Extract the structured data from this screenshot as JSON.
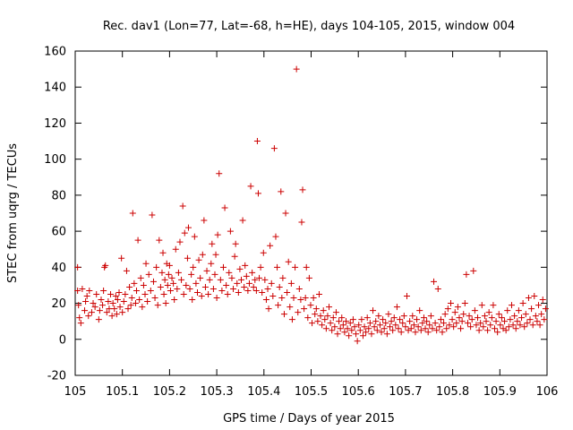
{
  "chart_data": {
    "type": "scatter",
    "title": "Rec. dav1 (Lon=77, Lat=-68, h=HE), days 104-105, 2015, window 004",
    "xlabel": "GPS time / Days of year 2015",
    "ylabel": "STEC from uqrg / TECUs",
    "xlim": [
      105,
      106
    ],
    "ylim": [
      -20,
      160
    ],
    "x_ticks": [
      105,
      105.1,
      105.2,
      105.3,
      105.4,
      105.5,
      105.6,
      105.7,
      105.8,
      105.9,
      106
    ],
    "x_tick_labels": [
      "105",
      "105.1",
      "105.2",
      "105.3",
      "105.4",
      "105.5",
      "105.6",
      "105.7",
      "105.8",
      "105.9",
      "106"
    ],
    "y_ticks": [
      -20,
      0,
      20,
      40,
      60,
      80,
      100,
      120,
      140,
      160
    ],
    "y_tick_labels": [
      "-20",
      "0",
      "20",
      "40",
      "60",
      "80",
      "100",
      "120",
      "140",
      "160"
    ],
    "grid": false,
    "marker": "+",
    "color": "#cc0000",
    "points": [
      [
        105.005,
        40
      ],
      [
        105.005,
        27
      ],
      [
        105.007,
        19
      ],
      [
        105.009,
        12
      ],
      [
        105.012,
        9
      ],
      [
        105.015,
        28
      ],
      [
        105.02,
        16
      ],
      [
        105.022,
        21
      ],
      [
        105.025,
        24
      ],
      [
        105.028,
        13
      ],
      [
        105.03,
        27
      ],
      [
        105.035,
        15
      ],
      [
        105.038,
        20
      ],
      [
        105.042,
        18
      ],
      [
        105.045,
        25
      ],
      [
        105.05,
        11
      ],
      [
        105.052,
        16
      ],
      [
        105.055,
        22
      ],
      [
        105.058,
        19
      ],
      [
        105.06,
        27
      ],
      [
        105.062,
        40
      ],
      [
        105.064,
        41
      ],
      [
        105.067,
        15
      ],
      [
        105.07,
        21
      ],
      [
        105.072,
        17
      ],
      [
        105.075,
        25
      ],
      [
        105.078,
        13
      ],
      [
        105.08,
        20
      ],
      [
        105.083,
        17
      ],
      [
        105.086,
        24
      ],
      [
        105.088,
        14
      ],
      [
        105.09,
        22
      ],
      [
        105.093,
        26
      ],
      [
        105.095,
        18
      ],
      [
        105.098,
        45
      ],
      [
        105.1,
        15
      ],
      [
        105.103,
        21
      ],
      [
        105.106,
        25
      ],
      [
        105.109,
        38
      ],
      [
        105.112,
        17
      ],
      [
        105.115,
        29
      ],
      [
        105.118,
        19
      ],
      [
        105.12,
        23
      ],
      [
        105.122,
        70
      ],
      [
        105.125,
        31
      ],
      [
        105.128,
        20
      ],
      [
        105.13,
        27
      ],
      [
        105.133,
        55
      ],
      [
        105.136,
        22
      ],
      [
        105.139,
        34
      ],
      [
        105.142,
        18
      ],
      [
        105.145,
        30
      ],
      [
        105.148,
        25
      ],
      [
        105.15,
        42
      ],
      [
        105.153,
        21
      ],
      [
        105.156,
        36
      ],
      [
        105.16,
        27
      ],
      [
        105.163,
        69
      ],
      [
        105.166,
        32
      ],
      [
        105.169,
        23
      ],
      [
        105.172,
        40
      ],
      [
        105.175,
        19
      ],
      [
        105.178,
        55
      ],
      [
        105.181,
        29
      ],
      [
        105.184,
        37
      ],
      [
        105.186,
        48
      ],
      [
        105.188,
        25
      ],
      [
        105.19,
        33
      ],
      [
        105.192,
        20
      ],
      [
        105.194,
        42
      ],
      [
        105.196,
        30
      ],
      [
        105.198,
        36
      ],
      [
        105.2,
        41
      ],
      [
        105.202,
        27
      ],
      [
        105.205,
        34
      ],
      [
        105.208,
        31
      ],
      [
        105.21,
        22
      ],
      [
        105.213,
        50
      ],
      [
        105.216,
        28
      ],
      [
        105.219,
        37
      ],
      [
        105.222,
        54
      ],
      [
        105.225,
        33
      ],
      [
        105.228,
        74
      ],
      [
        105.23,
        25
      ],
      [
        105.232,
        59
      ],
      [
        105.235,
        30
      ],
      [
        105.238,
        45
      ],
      [
        105.24,
        62
      ],
      [
        105.243,
        28
      ],
      [
        105.246,
        36
      ],
      [
        105.248,
        22
      ],
      [
        105.25,
        40
      ],
      [
        105.253,
        57
      ],
      [
        105.256,
        31
      ],
      [
        105.259,
        26
      ],
      [
        105.262,
        44
      ],
      [
        105.265,
        34
      ],
      [
        105.268,
        24
      ],
      [
        105.27,
        47
      ],
      [
        105.273,
        66
      ],
      [
        105.276,
        29
      ],
      [
        105.279,
        38
      ],
      [
        105.282,
        25
      ],
      [
        105.285,
        33
      ],
      [
        105.288,
        42
      ],
      [
        105.29,
        53
      ],
      [
        105.293,
        28
      ],
      [
        105.296,
        36
      ],
      [
        105.298,
        47
      ],
      [
        105.3,
        23
      ],
      [
        105.302,
        58
      ],
      [
        105.305,
        92
      ],
      [
        105.308,
        33
      ],
      [
        105.311,
        27
      ],
      [
        105.314,
        40
      ],
      [
        105.317,
        73
      ],
      [
        105.32,
        30
      ],
      [
        105.323,
        25
      ],
      [
        105.326,
        37
      ],
      [
        105.329,
        60
      ],
      [
        105.332,
        34
      ],
      [
        105.335,
        28
      ],
      [
        105.338,
        46
      ],
      [
        105.34,
        53
      ],
      [
        105.343,
        31
      ],
      [
        105.346,
        26
      ],
      [
        105.349,
        39
      ],
      [
        105.352,
        33
      ],
      [
        105.355,
        66
      ],
      [
        105.358,
        29
      ],
      [
        105.36,
        41
      ],
      [
        105.363,
        35
      ],
      [
        105.366,
        27
      ],
      [
        105.369,
        31
      ],
      [
        105.372,
        85
      ],
      [
        105.375,
        37
      ],
      [
        105.378,
        29
      ],
      [
        105.381,
        33
      ],
      [
        105.384,
        27
      ],
      [
        105.386,
        110
      ],
      [
        105.388,
        81
      ],
      [
        105.39,
        34
      ],
      [
        105.393,
        40
      ],
      [
        105.396,
        26
      ],
      [
        105.399,
        48
      ],
      [
        105.402,
        33
      ],
      [
        105.405,
        22
      ],
      [
        105.408,
        28
      ],
      [
        105.41,
        17
      ],
      [
        105.413,
        52
      ],
      [
        105.416,
        31
      ],
      [
        105.419,
        24
      ],
      [
        105.422,
        106
      ],
      [
        105.425,
        57
      ],
      [
        105.428,
        40
      ],
      [
        105.43,
        19
      ],
      [
        105.433,
        29
      ],
      [
        105.436,
        82
      ],
      [
        105.438,
        23
      ],
      [
        105.44,
        34
      ],
      [
        105.443,
        14
      ],
      [
        105.446,
        70
      ],
      [
        105.449,
        26
      ],
      [
        105.452,
        43
      ],
      [
        105.455,
        18
      ],
      [
        105.458,
        31
      ],
      [
        105.46,
        11
      ],
      [
        105.463,
        23
      ],
      [
        105.466,
        40
      ],
      [
        105.469,
        150
      ],
      [
        105.472,
        15
      ],
      [
        105.475,
        28
      ],
      [
        105.478,
        22
      ],
      [
        105.48,
        65
      ],
      [
        105.482,
        83
      ],
      [
        105.485,
        17
      ],
      [
        105.488,
        23
      ],
      [
        105.49,
        40
      ],
      [
        105.493,
        12
      ],
      [
        105.496,
        34
      ],
      [
        105.499,
        19
      ],
      [
        105.502,
        9
      ],
      [
        105.505,
        23
      ],
      [
        105.508,
        14
      ],
      [
        105.511,
        17
      ],
      [
        105.514,
        10
      ],
      [
        105.517,
        25
      ],
      [
        105.52,
        13
      ],
      [
        105.523,
        8
      ],
      [
        105.526,
        16
      ],
      [
        105.529,
        11
      ],
      [
        105.532,
        6
      ],
      [
        105.535,
        13
      ],
      [
        105.538,
        18
      ],
      [
        105.541,
        9
      ],
      [
        105.544,
        5
      ],
      [
        105.547,
        12
      ],
      [
        105.55,
        7
      ],
      [
        105.553,
        15
      ],
      [
        105.556,
        3
      ],
      [
        105.559,
        10
      ],
      [
        105.562,
        6
      ],
      [
        105.565,
        12
      ],
      [
        105.568,
        8
      ],
      [
        105.571,
        4
      ],
      [
        105.574,
        10
      ],
      [
        105.577,
        6
      ],
      [
        105.58,
        2
      ],
      [
        105.583,
        9
      ],
      [
        105.586,
        5
      ],
      [
        105.589,
        11
      ],
      [
        105.592,
        7
      ],
      [
        105.595,
        3
      ],
      [
        105.598,
        -1
      ],
      [
        105.601,
        8
      ],
      [
        105.604,
        5
      ],
      [
        105.607,
        11
      ],
      [
        105.61,
        2
      ],
      [
        105.613,
        7
      ],
      [
        105.616,
        4
      ],
      [
        105.619,
        12
      ],
      [
        105.622,
        6
      ],
      [
        105.625,
        9
      ],
      [
        105.628,
        3
      ],
      [
        105.631,
        16
      ],
      [
        105.634,
        7
      ],
      [
        105.637,
        10
      ],
      [
        105.64,
        5
      ],
      [
        105.643,
        13
      ],
      [
        105.646,
        8
      ],
      [
        105.649,
        4
      ],
      [
        105.652,
        11
      ],
      [
        105.655,
        6
      ],
      [
        105.658,
        9
      ],
      [
        105.661,
        3
      ],
      [
        105.664,
        14
      ],
      [
        105.667,
        7
      ],
      [
        105.67,
        10
      ],
      [
        105.673,
        5
      ],
      [
        105.676,
        12
      ],
      [
        105.679,
        8
      ],
      [
        105.682,
        18
      ],
      [
        105.685,
        6
      ],
      [
        105.688,
        11
      ],
      [
        105.691,
        4
      ],
      [
        105.694,
        9
      ],
      [
        105.697,
        13
      ],
      [
        105.7,
        7
      ],
      [
        105.703,
        24
      ],
      [
        105.706,
        5
      ],
      [
        105.709,
        10
      ],
      [
        105.712,
        6
      ],
      [
        105.715,
        13
      ],
      [
        105.718,
        8
      ],
      [
        105.721,
        4
      ],
      [
        105.724,
        11
      ],
      [
        105.727,
        7
      ],
      [
        105.73,
        16
      ],
      [
        105.733,
        5
      ],
      [
        105.736,
        9
      ],
      [
        105.739,
        12
      ],
      [
        105.742,
        6
      ],
      [
        105.745,
        10
      ],
      [
        105.748,
        4
      ],
      [
        105.751,
        8
      ],
      [
        105.754,
        13
      ],
      [
        105.757,
        6
      ],
      [
        105.76,
        32
      ],
      [
        105.763,
        9
      ],
      [
        105.766,
        5
      ],
      [
        105.769,
        28
      ],
      [
        105.772,
        7
      ],
      [
        105.775,
        11
      ],
      [
        105.778,
        4
      ],
      [
        105.781,
        9
      ],
      [
        105.784,
        14
      ],
      [
        105.787,
        6
      ],
      [
        105.79,
        17
      ],
      [
        105.793,
        8
      ],
      [
        105.796,
        20
      ],
      [
        105.799,
        11
      ],
      [
        105.802,
        7
      ],
      [
        105.805,
        15
      ],
      [
        105.808,
        9
      ],
      [
        105.811,
        18
      ],
      [
        105.814,
        12
      ],
      [
        105.817,
        6
      ],
      [
        105.82,
        10
      ],
      [
        105.823,
        14
      ],
      [
        105.826,
        20
      ],
      [
        105.829,
        36
      ],
      [
        105.832,
        9
      ],
      [
        105.835,
        13
      ],
      [
        105.838,
        7
      ],
      [
        105.841,
        11
      ],
      [
        105.844,
        38
      ],
      [
        105.847,
        16
      ],
      [
        105.85,
        8
      ],
      [
        105.853,
        12
      ],
      [
        105.856,
        5
      ],
      [
        105.859,
        9
      ],
      [
        105.862,
        19
      ],
      [
        105.865,
        7
      ],
      [
        105.868,
        13
      ],
      [
        105.871,
        10
      ],
      [
        105.874,
        5
      ],
      [
        105.877,
        15
      ],
      [
        105.88,
        8
      ],
      [
        105.883,
        12
      ],
      [
        105.886,
        19
      ],
      [
        105.889,
        6
      ],
      [
        105.892,
        10
      ],
      [
        105.895,
        4
      ],
      [
        105.898,
        14
      ],
      [
        105.901,
        8
      ],
      [
        105.904,
        12
      ],
      [
        105.907,
        6
      ],
      [
        105.91,
        10
      ],
      [
        105.913,
        5
      ],
      [
        105.916,
        16
      ],
      [
        105.919,
        7
      ],
      [
        105.922,
        11
      ],
      [
        105.925,
        19
      ],
      [
        105.928,
        8
      ],
      [
        105.931,
        13
      ],
      [
        105.934,
        6
      ],
      [
        105.937,
        10
      ],
      [
        105.94,
        16
      ],
      [
        105.943,
        8
      ],
      [
        105.946,
        12
      ],
      [
        105.949,
        20
      ],
      [
        105.952,
        7
      ],
      [
        105.955,
        14
      ],
      [
        105.958,
        9
      ],
      [
        105.961,
        23
      ],
      [
        105.964,
        11
      ],
      [
        105.967,
        17
      ],
      [
        105.97,
        8
      ],
      [
        105.973,
        24
      ],
      [
        105.976,
        13
      ],
      [
        105.979,
        10
      ],
      [
        105.982,
        19
      ],
      [
        105.985,
        8
      ],
      [
        105.988,
        14
      ],
      [
        105.991,
        22
      ],
      [
        105.994,
        11
      ],
      [
        105.997,
        17
      ]
    ]
  }
}
